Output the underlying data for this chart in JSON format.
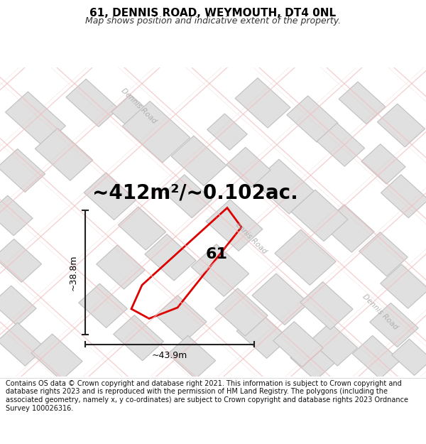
{
  "title": "61, DENNIS ROAD, WEYMOUTH, DT4 0NL",
  "subtitle": "Map shows position and indicative extent of the property.",
  "area_label": "~412m²/~0.102ac.",
  "width_label": "~43.9m",
  "height_label": "~38.8m",
  "property_number": "61",
  "footer": "Contains OS data © Crown copyright and database right 2021. This information is subject to Crown copyright and database rights 2023 and is reproduced with the permission of HM Land Registry. The polygons (including the associated geometry, namely x, y co-ordinates) are subject to Crown copyright and database rights 2023 Ordnance Survey 100026316.",
  "map_bg": "#fafafa",
  "property_polygon_color": "#dd0000",
  "block_fill_color": "#e0e0e0",
  "block_edge_color": "#c0c0c0",
  "road_fill_color": "#ffffff",
  "road_line_color": "#f0c0c0",
  "road_label_color": "#aaaaaa",
  "title_fontsize": 11,
  "subtitle_fontsize": 9,
  "area_fontsize": 20,
  "measure_fontsize": 9,
  "footer_fontsize": 7,
  "title_color": "#000000",
  "subtitle_color": "#333333"
}
